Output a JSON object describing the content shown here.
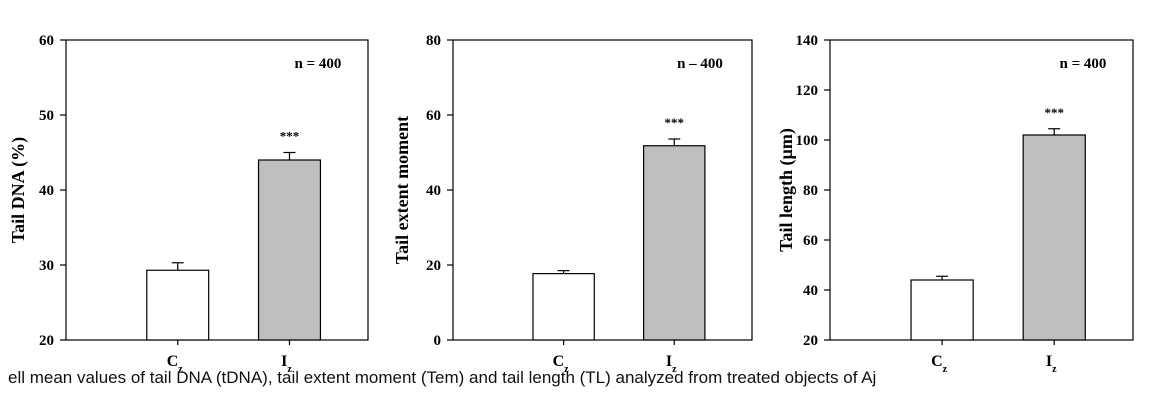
{
  "chart_data": [
    {
      "type": "bar",
      "title": "",
      "xlabel": "",
      "ylabel": "Tail DNA (%)",
      "ylim": [
        20,
        60
      ],
      "yticks": [
        "20",
        "30",
        "40",
        "50",
        "60"
      ],
      "annotation": "n = 400",
      "categories": [
        {
          "main": "C",
          "sub": "z"
        },
        {
          "main": "I",
          "sub": "z"
        }
      ],
      "values": [
        29.3,
        44.0
      ],
      "errors": [
        1.0,
        1.0
      ],
      "significance": [
        "",
        "***"
      ],
      "bar_colors": [
        "#ffffff",
        "#bfbfbf"
      ]
    },
    {
      "type": "bar",
      "title": "",
      "xlabel": "",
      "ylabel": "Tail extent moment",
      "ylim": [
        0,
        80
      ],
      "yticks": [
        "0",
        "20",
        "40",
        "60",
        "80"
      ],
      "annotation": "n – 400",
      "categories": [
        {
          "main": "C",
          "sub": "z"
        },
        {
          "main": "I",
          "sub": "z"
        }
      ],
      "values": [
        17.7,
        51.8
      ],
      "errors": [
        0.8,
        1.8
      ],
      "significance": [
        "",
        "***"
      ],
      "bar_colors": [
        "#ffffff",
        "#bfbfbf"
      ]
    },
    {
      "type": "bar",
      "title": "",
      "xlabel": "",
      "ylabel": "Tail length (µm)",
      "ylim": [
        20,
        140
      ],
      "yticks": [
        "20",
        "40",
        "60",
        "80",
        "100",
        "120",
        "140"
      ],
      "annotation": "n = 400",
      "categories": [
        {
          "main": "C",
          "sub": "z"
        },
        {
          "main": "I",
          "sub": "z"
        }
      ],
      "values": [
        44.0,
        102.0
      ],
      "errors": [
        1.5,
        2.5
      ],
      "significance": [
        "",
        "***"
      ],
      "bar_colors": [
        "#ffffff",
        "#bfbfbf"
      ]
    }
  ],
  "caption": "ell mean values of tail DNA (tDNA), tail extent moment (Tem) and tail length (TL) analyzed from treated objects of Aj"
}
